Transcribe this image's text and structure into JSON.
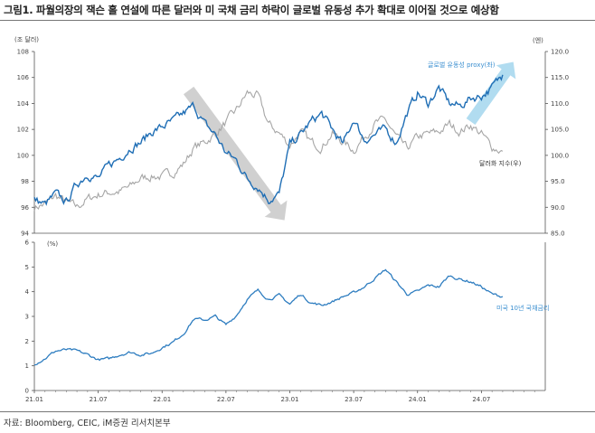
{
  "title": "그림1.  파월의장의 잭슨 홀 연설에 따른 달러와 미 국채 금리 하락이 글로벌 유동성 추가 확대로 이어질 것으로 예상함",
  "source": "자료: Bloomberg, CEIC, iM증권 리서치본부",
  "colors": {
    "liquidity": "#1f6eb5",
    "dollar": "#a6a6a6",
    "yield": "#2e7dc0",
    "arrow_down": "#c8c8c8",
    "arrow_up": "#a9d8ee"
  },
  "chart_data": [
    {
      "type": "line",
      "unit_left": "(조 달러)",
      "unit_right": "(엔)",
      "ylim_left": [
        94,
        108
      ],
      "yticks_left": [
        "94",
        "96",
        "98",
        "100",
        "102",
        "104",
        "106",
        "108"
      ],
      "ylim_right": [
        85,
        120
      ],
      "yticks_right": [
        "85.0",
        "90.0",
        "95.0",
        "100.0",
        "105.0",
        "110.0",
        "115.0",
        "120.0"
      ],
      "x_range": [
        "2021-01",
        "2025-01"
      ],
      "series": [
        {
          "name": "글로벌 유동성 proxy(좌)",
          "axis": "left",
          "x": [
            "2021-01",
            "2021-02",
            "2021-03",
            "2021-04",
            "2021-05",
            "2021-06",
            "2021-07",
            "2021-08",
            "2021-09",
            "2021-10",
            "2021-11",
            "2021-12",
            "2022-01",
            "2022-02",
            "2022-03",
            "2022-04",
            "2022-05",
            "2022-06",
            "2022-07",
            "2022-08",
            "2022-09",
            "2022-10",
            "2022-11",
            "2022-12",
            "2023-01",
            "2023-02",
            "2023-03",
            "2023-04",
            "2023-05",
            "2023-06",
            "2023-07",
            "2023-08",
            "2023-09",
            "2023-10",
            "2023-11",
            "2023-12",
            "2024-01",
            "2024-02",
            "2024-03",
            "2024-04",
            "2024-05",
            "2024-06",
            "2024-07",
            "2024-08",
            "2024-09"
          ],
          "values": [
            96.6,
            96.2,
            97.0,
            96.4,
            97.8,
            98.6,
            98.2,
            99.2,
            99.8,
            100.6,
            101.0,
            101.8,
            102.2,
            102.6,
            103.2,
            103.8,
            102.4,
            101.6,
            100.2,
            99.6,
            98.2,
            97.6,
            96.6,
            97.0,
            100.8,
            101.6,
            102.6,
            103.2,
            102.0,
            100.8,
            102.8,
            101.2,
            101.6,
            102.0,
            101.0,
            103.2,
            104.8,
            104.0,
            105.2,
            104.0,
            103.8,
            104.4,
            104.6,
            105.2,
            106.2
          ]
        },
        {
          "name": "달러화 지수(우)",
          "axis": "right",
          "x": [
            "2021-01",
            "2021-02",
            "2021-03",
            "2021-04",
            "2021-05",
            "2021-06",
            "2021-07",
            "2021-08",
            "2021-09",
            "2021-10",
            "2021-11",
            "2021-12",
            "2022-01",
            "2022-02",
            "2022-03",
            "2022-04",
            "2022-05",
            "2022-06",
            "2022-07",
            "2022-08",
            "2022-09",
            "2022-10",
            "2022-11",
            "2022-12",
            "2023-01",
            "2023-02",
            "2023-03",
            "2023-04",
            "2023-05",
            "2023-06",
            "2023-07",
            "2023-08",
            "2023-09",
            "2023-10",
            "2023-11",
            "2023-12",
            "2024-01",
            "2024-02",
            "2024-03",
            "2024-04",
            "2024-05",
            "2024-06",
            "2024-07",
            "2024-08",
            "2024-09"
          ],
          "values": [
            90.0,
            90.6,
            92.2,
            91.0,
            90.0,
            91.6,
            92.4,
            92.9,
            93.0,
            93.9,
            95.6,
            96.0,
            95.9,
            96.7,
            98.3,
            101.5,
            102.5,
            104.2,
            106.3,
            108.7,
            112.0,
            111.4,
            106.0,
            104.3,
            102.0,
            104.5,
            102.5,
            101.7,
            104.2,
            102.6,
            101.0,
            103.6,
            106.2,
            106.7,
            103.5,
            101.2,
            103.5,
            104.1,
            104.5,
            106.0,
            104.6,
            105.9,
            104.1,
            101.6,
            100.8
          ]
        }
      ],
      "annotations": [
        "글로벌 유동성 proxy(좌)",
        "달러화 지수(우)"
      ]
    },
    {
      "type": "line",
      "unit": "(%)",
      "ylim": [
        0,
        6
      ],
      "yticks": [
        "0",
        "1",
        "2",
        "3",
        "4",
        "5",
        "6"
      ],
      "x_range": [
        "2021-01",
        "2025-01"
      ],
      "xticks": [
        "21.01",
        "21.07",
        "22.01",
        "22.07",
        "23.01",
        "23.07",
        "24.01",
        "24.07"
      ],
      "series": [
        {
          "name": "미국 10년 국채금리",
          "x": [
            "2021-01",
            "2021-02",
            "2021-03",
            "2021-04",
            "2021-05",
            "2021-06",
            "2021-07",
            "2021-08",
            "2021-09",
            "2021-10",
            "2021-11",
            "2021-12",
            "2022-01",
            "2022-02",
            "2022-03",
            "2022-04",
            "2022-05",
            "2022-06",
            "2022-07",
            "2022-08",
            "2022-09",
            "2022-10",
            "2022-11",
            "2022-12",
            "2023-01",
            "2023-02",
            "2023-03",
            "2023-04",
            "2023-05",
            "2023-06",
            "2023-07",
            "2023-08",
            "2023-09",
            "2023-10",
            "2023-11",
            "2023-12",
            "2024-01",
            "2024-02",
            "2024-03",
            "2024-04",
            "2024-05",
            "2024-06",
            "2024-07",
            "2024-08",
            "2024-09"
          ],
          "values": [
            1.07,
            1.3,
            1.6,
            1.65,
            1.6,
            1.45,
            1.25,
            1.28,
            1.45,
            1.55,
            1.45,
            1.5,
            1.75,
            1.95,
            2.3,
            2.9,
            2.85,
            3.0,
            2.65,
            3.05,
            3.7,
            4.05,
            3.7,
            3.85,
            3.5,
            3.9,
            3.55,
            3.45,
            3.6,
            3.8,
            3.95,
            4.2,
            4.55,
            4.9,
            4.4,
            3.9,
            4.0,
            4.25,
            4.2,
            4.65,
            4.5,
            4.4,
            4.2,
            3.9,
            3.8
          ]
        }
      ],
      "annotations": [
        "미국 10년 국채금리"
      ]
    }
  ]
}
